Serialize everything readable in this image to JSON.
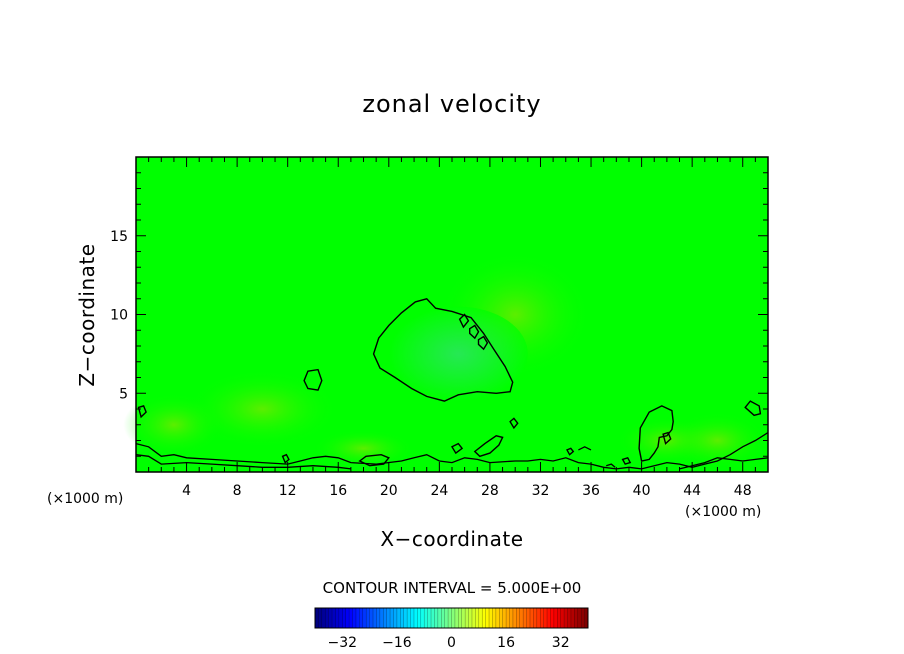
{
  "chart_data": {
    "type": "heatmap",
    "title": "zonal velocity",
    "xlabel": "X−coordinate",
    "ylabel": "Z−coordinate",
    "x_unit_label": "(×1000 m)",
    "xlim": [
      0,
      50
    ],
    "ylim": [
      0,
      20
    ],
    "x_ticks": [
      4,
      8,
      12,
      16,
      20,
      24,
      28,
      32,
      36,
      40,
      44,
      48
    ],
    "y_ticks": [
      5,
      10,
      15
    ],
    "contour_interval_text": "CONTOUR INTERVAL = 5.000E+00",
    "colorbar": {
      "range": [
        -40,
        40
      ],
      "ticks": [
        -32,
        -16,
        0,
        16,
        32
      ]
    },
    "field_description_values": {
      "background_value": 0,
      "negative_region_center": [
        24,
        7.5
      ],
      "negative_region_min": -5
    },
    "colors": {
      "field_zero": "#00ff00",
      "contour_line": "#000000",
      "negative_tint": "#22ee55",
      "positive_tint": "#66ee00"
    }
  }
}
